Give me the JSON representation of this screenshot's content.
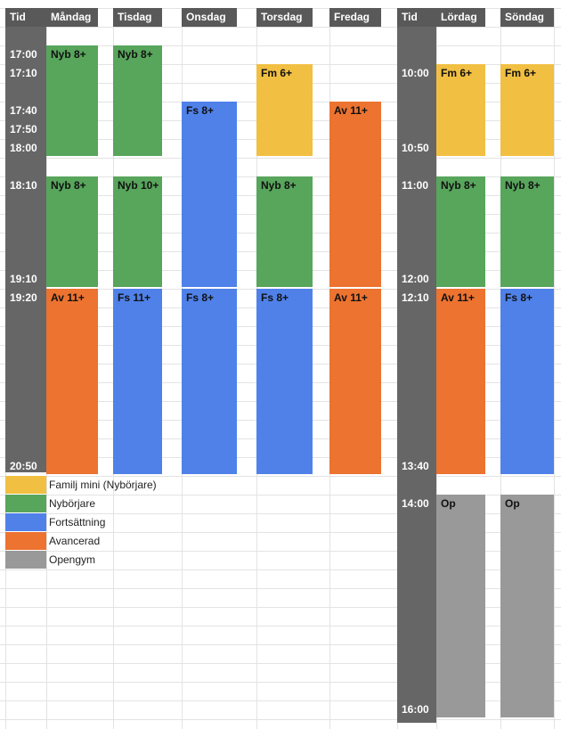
{
  "colors": {
    "header_bg": "#595959",
    "time_col_bg": "#666666",
    "Fm": "#f1bf42",
    "Nyb": "#58a55c",
    "Fs": "#4f81e9",
    "Av": "#ec7330",
    "Op": "#999999",
    "grid": "#e3e3e3"
  },
  "headers": {
    "tid1": "Tid",
    "mon": "Måndag",
    "tue": "Tisdag",
    "wed": "Onsdag",
    "thu": "Torsdag",
    "fri": "Fredag",
    "tid2": "Tid",
    "sat": "Lördag",
    "sun": "Söndag"
  },
  "weekday_times": [
    "17:00",
    "17:10",
    "17:40",
    "17:50",
    "18:00",
    "18:10",
    "19:10",
    "19:20",
    "20:50"
  ],
  "weekend_times": [
    "10:00",
    "10:50",
    "11:00",
    "12:00",
    "12:10",
    "13:40",
    "14:00",
    "16:00"
  ],
  "blocks": [
    {
      "day": "mon",
      "label": "Nyb 8+",
      "type": "Nyb"
    },
    {
      "day": "tue",
      "label": "Nyb 8+",
      "type": "Nyb"
    },
    {
      "day": "thu",
      "label": "Fm 6+",
      "type": "Fm"
    },
    {
      "day": "sat",
      "label": "Fm 6+",
      "type": "Fm"
    },
    {
      "day": "sun",
      "label": "Fm 6+",
      "type": "Fm"
    },
    {
      "day": "wed",
      "label": "Fs 8+",
      "type": "Fs"
    },
    {
      "day": "fri",
      "label": "Av 11+",
      "type": "Av"
    },
    {
      "day": "mon",
      "label": "Nyb 8+",
      "type": "Nyb"
    },
    {
      "day": "tue",
      "label": "Nyb 10+",
      "type": "Nyb"
    },
    {
      "day": "thu",
      "label": "Nyb 8+",
      "type": "Nyb"
    },
    {
      "day": "sat",
      "label": "Nyb 8+",
      "type": "Nyb"
    },
    {
      "day": "sun",
      "label": "Nyb 8+",
      "type": "Nyb"
    },
    {
      "day": "mon",
      "label": "Av 11+",
      "type": "Av"
    },
    {
      "day": "tue",
      "label": "Fs 11+",
      "type": "Fs"
    },
    {
      "day": "wed",
      "label": "Fs 8+",
      "type": "Fs"
    },
    {
      "day": "thu",
      "label": "Fs 8+",
      "type": "Fs"
    },
    {
      "day": "fri",
      "label": "Av 11+",
      "type": "Av"
    },
    {
      "day": "sat",
      "label": "Av 11+",
      "type": "Av"
    },
    {
      "day": "sun",
      "label": "Fs 8+",
      "type": "Fs"
    },
    {
      "day": "sat",
      "label": "Op",
      "type": "Op"
    },
    {
      "day": "sun",
      "label": "Op",
      "type": "Op"
    }
  ],
  "legend": [
    {
      "type": "Fm",
      "label": "Familj mini (Nybörjare)"
    },
    {
      "type": "Nyb",
      "label": "Nybörjare"
    },
    {
      "type": "Fs",
      "label": "Fortsättning"
    },
    {
      "type": "Av",
      "label": "Avancerad"
    },
    {
      "type": "Op",
      "label": "Opengym"
    }
  ]
}
